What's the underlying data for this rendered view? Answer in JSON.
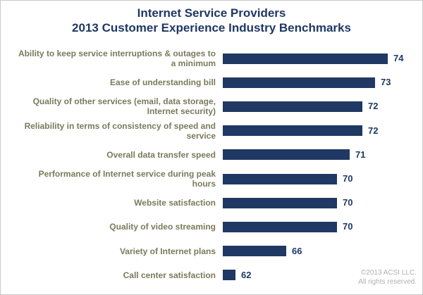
{
  "chart_data": {
    "type": "bar",
    "orientation": "horizontal",
    "title": "Internet Service Providers",
    "subtitle": "2013 Customer Experience Industry Benchmarks",
    "categories": [
      "Ability to keep service interruptions & outages to a minimum",
      "Ease of understanding bill",
      "Quality of other services (email, data storage, Internet security)",
      "Reliability in terms of consistency of speed and service",
      "Overall data transfer speed",
      "Performance of Internet service during peak hours",
      "Website satisfaction",
      "Quality of video streaming",
      "Variety of Internet plans",
      "Call center satisfaction"
    ],
    "values": [
      74,
      73,
      72,
      72,
      71,
      70,
      70,
      70,
      66,
      62
    ],
    "color": "#1f3864",
    "copyright": [
      "©2013 ACSI LLC.",
      "All rights reserved."
    ]
  }
}
